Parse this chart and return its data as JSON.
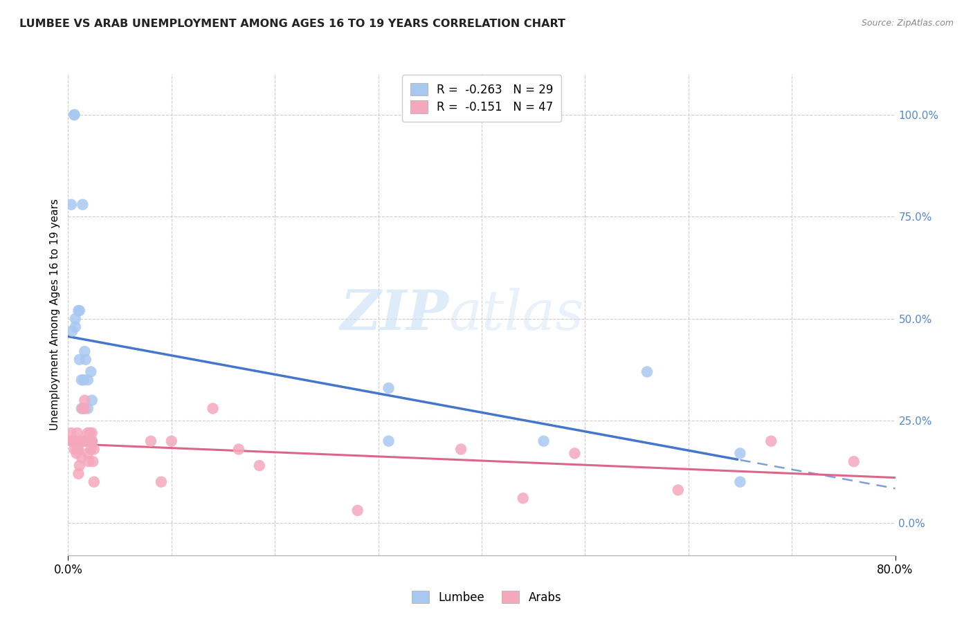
{
  "title": "LUMBEE VS ARAB UNEMPLOYMENT AMONG AGES 16 TO 19 YEARS CORRELATION CHART",
  "source": "Source: ZipAtlas.com",
  "ylabel": "Unemployment Among Ages 16 to 19 years",
  "xlim": [
    0.0,
    0.8
  ],
  "ylim": [
    -0.08,
    1.1
  ],
  "y_ticks_right": [
    0.0,
    0.25,
    0.5,
    0.75,
    1.0
  ],
  "y_tick_labels_right": [
    "0.0%",
    "25.0%",
    "50.0%",
    "75.0%",
    "100.0%"
  ],
  "lumbee_color": "#a8c8f0",
  "arab_color": "#f5a8bc",
  "lumbee_line_color": "#4477cc",
  "arab_line_color": "#dd6688",
  "lumbee_R": -0.263,
  "lumbee_N": 29,
  "arab_R": -0.151,
  "arab_N": 47,
  "lumbee_x": [
    0.003,
    0.006,
    0.006,
    0.014,
    0.004,
    0.007,
    0.007,
    0.01,
    0.011,
    0.011,
    0.013,
    0.013,
    0.015,
    0.016,
    0.017,
    0.019,
    0.019,
    0.021,
    0.021,
    0.022,
    0.023,
    0.023,
    0.023,
    0.31,
    0.31,
    0.46,
    0.56,
    0.65,
    0.65
  ],
  "lumbee_y": [
    0.78,
    1.0,
    1.0,
    0.78,
    0.47,
    0.48,
    0.5,
    0.52,
    0.52,
    0.4,
    0.28,
    0.35,
    0.35,
    0.42,
    0.4,
    0.28,
    0.35,
    0.2,
    0.2,
    0.37,
    0.2,
    0.2,
    0.3,
    0.33,
    0.2,
    0.2,
    0.37,
    0.17,
    0.1
  ],
  "arab_x": [
    0.003,
    0.003,
    0.004,
    0.005,
    0.006,
    0.006,
    0.007,
    0.008,
    0.009,
    0.009,
    0.01,
    0.01,
    0.011,
    0.012,
    0.013,
    0.013,
    0.014,
    0.015,
    0.016,
    0.016,
    0.016,
    0.018,
    0.019,
    0.019,
    0.02,
    0.021,
    0.021,
    0.022,
    0.022,
    0.023,
    0.023,
    0.024,
    0.025,
    0.025,
    0.08,
    0.09,
    0.1,
    0.14,
    0.165,
    0.185,
    0.28,
    0.38,
    0.44,
    0.49,
    0.59,
    0.68,
    0.76
  ],
  "arab_y": [
    0.2,
    0.22,
    0.2,
    0.2,
    0.2,
    0.18,
    0.2,
    0.17,
    0.18,
    0.22,
    0.12,
    0.18,
    0.14,
    0.2,
    0.16,
    0.2,
    0.28,
    0.2,
    0.2,
    0.28,
    0.3,
    0.2,
    0.22,
    0.17,
    0.15,
    0.2,
    0.22,
    0.2,
    0.18,
    0.2,
    0.22,
    0.15,
    0.18,
    0.1,
    0.2,
    0.1,
    0.2,
    0.28,
    0.18,
    0.14,
    0.03,
    0.18,
    0.06,
    0.17,
    0.08,
    0.2,
    0.15
  ]
}
